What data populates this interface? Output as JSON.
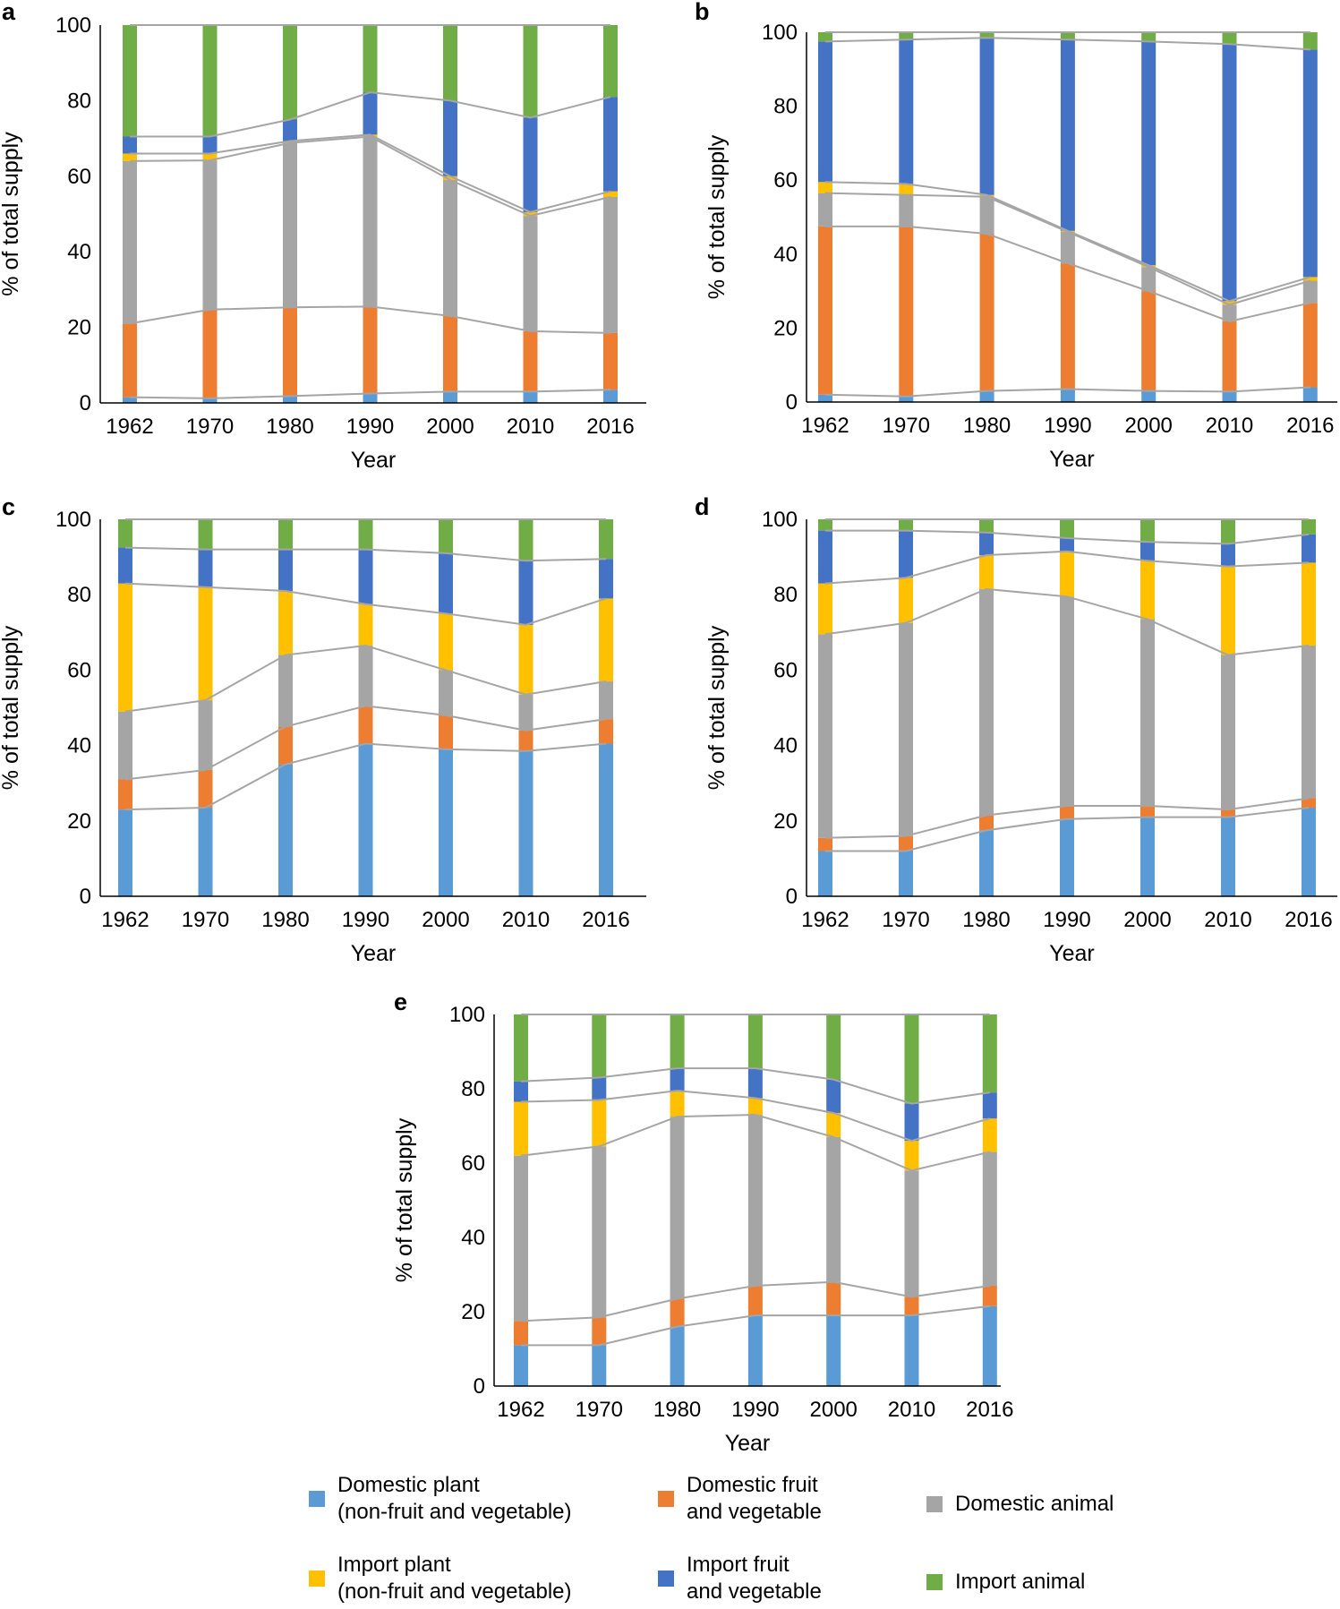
{
  "legend": {
    "items": [
      {
        "key": "dom_plant",
        "label": "Domestic plant\n(non-fruit and vegetable)",
        "color": "#5b9bd5"
      },
      {
        "key": "dom_fv",
        "label": "Domestic fruit\nand vegetable",
        "color": "#ed7d31"
      },
      {
        "key": "dom_animal",
        "label": "Domestic animal",
        "color": "#a5a5a5"
      },
      {
        "key": "imp_plant",
        "label": "Import plant\n(non-fruit and vegetable)",
        "color": "#ffc000"
      },
      {
        "key": "imp_fv",
        "label": "Import fruit\nand vegetable",
        "color": "#4472c4"
      },
      {
        "key": "imp_animal",
        "label": "Import animal",
        "color": "#70ad47"
      }
    ]
  },
  "connector_color": "#a5a5a5",
  "chart_data": [
    {
      "panel": "a",
      "type": "bar",
      "stacked": true,
      "categories": [
        "1962",
        "1970",
        "1980",
        "1990",
        "2000",
        "2010",
        "2016"
      ],
      "xlabel": "Year",
      "ylabel": "% of total supply",
      "ylim": [
        0,
        100
      ],
      "yticks": [
        "0",
        "20",
        "40",
        "60",
        "80",
        "100"
      ],
      "series": [
        {
          "name": "Domestic plant (non-fruit and vegetable)",
          "values": [
            1.5,
            1.2,
            1.8,
            2.5,
            3.0,
            3.0,
            3.5
          ]
        },
        {
          "name": "Domestic fruit and vegetable",
          "values": [
            19.5,
            23.5,
            23.5,
            23.0,
            20.0,
            16.0,
            15.0
          ]
        },
        {
          "name": "Domestic animal",
          "values": [
            43.0,
            39.5,
            43.5,
            45.0,
            36.0,
            30.5,
            36.0
          ]
        },
        {
          "name": "Import plant (non-fruit and vegetable)",
          "values": [
            2.0,
            1.8,
            0.5,
            0.5,
            1.0,
            1.0,
            1.5
          ]
        },
        {
          "name": "Import fruit and vegetable",
          "values": [
            4.5,
            4.5,
            5.7,
            11.2,
            20.0,
            25.0,
            25.0
          ]
        },
        {
          "name": "Import animal",
          "values": [
            29.5,
            29.5,
            25.0,
            17.8,
            20.0,
            24.5,
            19.0
          ]
        }
      ]
    },
    {
      "panel": "b",
      "type": "bar",
      "stacked": true,
      "categories": [
        "1962",
        "1970",
        "1980",
        "1990",
        "2000",
        "2010",
        "2016"
      ],
      "xlabel": "Year",
      "ylabel": "% of total supply",
      "ylim": [
        0,
        100
      ],
      "yticks": [
        "0",
        "20",
        "40",
        "60",
        "80",
        "100"
      ],
      "series": [
        {
          "name": "Domestic plant (non-fruit and vegetable)",
          "values": [
            2.0,
            1.5,
            3.0,
            3.5,
            3.0,
            2.8,
            4.0
          ]
        },
        {
          "name": "Domestic fruit and vegetable",
          "values": [
            45.5,
            46.0,
            42.5,
            34.0,
            27.0,
            19.0,
            22.8
          ]
        },
        {
          "name": "Domestic animal",
          "values": [
            9.0,
            8.5,
            10.0,
            8.5,
            6.5,
            4.5,
            6.0
          ]
        },
        {
          "name": "Import plant (non-fruit and vegetable)",
          "values": [
            3.0,
            3.0,
            0.5,
            0.3,
            0.5,
            1.0,
            1.0
          ]
        },
        {
          "name": "Import fruit and vegetable",
          "values": [
            38.0,
            39.0,
            42.5,
            51.7,
            60.5,
            69.5,
            61.5
          ]
        },
        {
          "name": "Import animal",
          "values": [
            2.5,
            2.0,
            1.5,
            2.0,
            2.5,
            3.2,
            4.7
          ]
        }
      ]
    },
    {
      "panel": "c",
      "type": "bar",
      "stacked": true,
      "categories": [
        "1962",
        "1970",
        "1980",
        "1990",
        "2000",
        "2010",
        "2016"
      ],
      "xlabel": "Year",
      "ylabel": "% of total supply",
      "ylim": [
        0,
        100
      ],
      "yticks": [
        "0",
        "20",
        "40",
        "60",
        "80",
        "100"
      ],
      "series": [
        {
          "name": "Domestic plant (non-fruit and vegetable)",
          "values": [
            23.0,
            23.5,
            35.0,
            40.5,
            39.0,
            38.5,
            40.5
          ]
        },
        {
          "name": "Domestic fruit and vegetable",
          "values": [
            8.0,
            10.0,
            10.0,
            10.0,
            9.0,
            5.5,
            6.5
          ]
        },
        {
          "name": "Domestic animal",
          "values": [
            18.0,
            18.5,
            19.0,
            16.0,
            12.0,
            9.5,
            10.0
          ]
        },
        {
          "name": "Import plant (non-fruit and vegetable)",
          "values": [
            34.0,
            30.0,
            17.0,
            11.0,
            15.0,
            18.5,
            22.0
          ]
        },
        {
          "name": "Import fruit and vegetable",
          "values": [
            9.5,
            10.0,
            11.0,
            14.5,
            16.0,
            17.0,
            10.5
          ]
        },
        {
          "name": "Import animal",
          "values": [
            7.5,
            8.0,
            8.0,
            8.0,
            9.0,
            11.0,
            10.5
          ]
        }
      ]
    },
    {
      "panel": "d",
      "type": "bar",
      "stacked": true,
      "categories": [
        "1962",
        "1970",
        "1980",
        "1990",
        "2000",
        "2010",
        "2016"
      ],
      "xlabel": "Year",
      "ylabel": "% of total supply",
      "ylim": [
        0,
        100
      ],
      "yticks": [
        "0",
        "20",
        "40",
        "60",
        "80",
        "100"
      ],
      "series": [
        {
          "name": "Domestic plant (non-fruit and vegetable)",
          "values": [
            12.0,
            12.0,
            17.5,
            20.5,
            21.0,
            21.0,
            23.5
          ]
        },
        {
          "name": "Domestic fruit and vegetable",
          "values": [
            3.5,
            4.0,
            4.0,
            3.5,
            3.0,
            2.0,
            2.5
          ]
        },
        {
          "name": "Domestic animal",
          "values": [
            54.0,
            56.5,
            60.0,
            55.5,
            49.5,
            41.0,
            40.5
          ]
        },
        {
          "name": "Import plant (non-fruit and vegetable)",
          "values": [
            13.5,
            12.0,
            9.0,
            12.0,
            15.5,
            23.5,
            22.0
          ]
        },
        {
          "name": "Import fruit and vegetable",
          "values": [
            14.0,
            12.5,
            6.0,
            3.5,
            5.0,
            6.0,
            7.5
          ]
        },
        {
          "name": "Import animal",
          "values": [
            3.0,
            3.0,
            3.5,
            5.0,
            6.0,
            6.5,
            4.0
          ]
        }
      ]
    },
    {
      "panel": "e",
      "type": "bar",
      "stacked": true,
      "categories": [
        "1962",
        "1970",
        "1980",
        "1990",
        "2000",
        "2010",
        "2016"
      ],
      "xlabel": "Year",
      "ylabel": "% of total supply",
      "ylim": [
        0,
        100
      ],
      "yticks": [
        "0",
        "20",
        "40",
        "60",
        "80",
        "100"
      ],
      "series": [
        {
          "name": "Domestic plant (non-fruit and vegetable)",
          "values": [
            11.0,
            11.0,
            16.0,
            19.0,
            19.0,
            19.0,
            21.5
          ]
        },
        {
          "name": "Domestic fruit and vegetable",
          "values": [
            6.5,
            7.5,
            7.5,
            8.0,
            9.0,
            5.0,
            5.5
          ]
        },
        {
          "name": "Domestic animal",
          "values": [
            44.5,
            46.0,
            49.0,
            46.0,
            39.0,
            34.0,
            36.0
          ]
        },
        {
          "name": "Import plant (non-fruit and vegetable)",
          "values": [
            14.5,
            12.5,
            7.0,
            4.5,
            6.5,
            8.0,
            9.0
          ]
        },
        {
          "name": "Import fruit and vegetable",
          "values": [
            5.5,
            6.0,
            6.0,
            8.0,
            9.0,
            10.0,
            7.0
          ]
        },
        {
          "name": "Import animal",
          "values": [
            18.0,
            17.0,
            14.5,
            14.5,
            17.5,
            24.0,
            21.0
          ]
        }
      ]
    }
  ]
}
